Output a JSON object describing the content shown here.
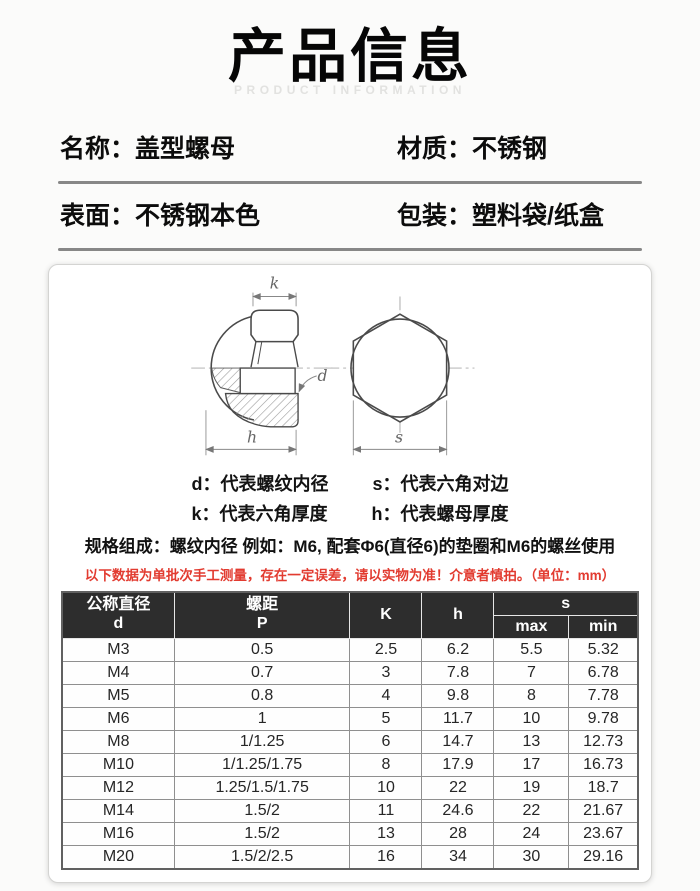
{
  "header": {
    "title": "产品信息",
    "subtitle": "PRODUCT INFORMATION"
  },
  "specs": {
    "rows": [
      [
        "名称：盖型螺母",
        "材质：不锈钢"
      ],
      [
        "表面：不锈钢本色",
        "包装：塑料袋/纸盒"
      ]
    ]
  },
  "diagram": {
    "dim_labels": {
      "k": "k",
      "d": "d",
      "h": "h",
      "s": "s"
    },
    "legend": [
      "d：代表螺纹内径",
      "s：代表六角对边",
      "k：代表六角厚度",
      "h：代表螺母厚度"
    ],
    "spec_note": "规格组成：螺纹内径 例如：M6, 配套Φ6(直径6)的垫圈和M6的螺丝使用",
    "warning": "以下数据为单批次手工测量，存在一定误差，请以实物为准！介意者慎拍。（单位：mm）"
  },
  "table": {
    "header": {
      "d": "公称直径\nd",
      "p": "螺距\nP",
      "k": "K",
      "h": "h",
      "s": "s",
      "max": "max",
      "min": "min"
    },
    "rows": [
      [
        "M3",
        "0.5",
        "2.5",
        "6.2",
        "5.5",
        "5.32"
      ],
      [
        "M4",
        "0.7",
        "3",
        "7.8",
        "7",
        "6.78"
      ],
      [
        "M5",
        "0.8",
        "4",
        "9.8",
        "8",
        "7.78"
      ],
      [
        "M6",
        "1",
        "5",
        "11.7",
        "10",
        "9.78"
      ],
      [
        "M8",
        "1/1.25",
        "6",
        "14.7",
        "13",
        "12.73"
      ],
      [
        "M10",
        "1/1.25/1.75",
        "8",
        "17.9",
        "17",
        "16.73"
      ],
      [
        "M12",
        "1.25/1.5/1.75",
        "10",
        "22",
        "19",
        "18.7"
      ],
      [
        "M14",
        "1.5/2",
        "11",
        "24.6",
        "22",
        "21.67"
      ],
      [
        "M16",
        "1.5/2",
        "13",
        "28",
        "24",
        "23.67"
      ],
      [
        "M20",
        "1.5/2/2.5",
        "16",
        "34",
        "30",
        "29.16"
      ]
    ]
  },
  "colors": {
    "warning_red": "#e23b30",
    "table_header_bg": "#2d2d2d",
    "divider_gray": "#878787"
  }
}
